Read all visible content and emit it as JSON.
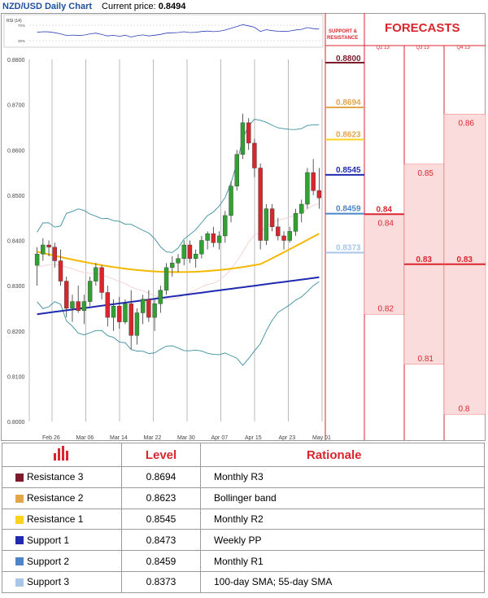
{
  "header": {
    "pair": "NZD/USD Daily Chart",
    "price_label": "Current price: ",
    "price": "0.8494"
  },
  "rsi": {
    "label": "RSI (14)",
    "ticks": [
      "70%",
      "30%"
    ]
  },
  "sr_header": "SUPPORT & RESISTANCE",
  "forecasts": {
    "title": "FORECASTS",
    "quarters": [
      "Q2 13",
      "Q3 13",
      "Q4 13"
    ],
    "values": {
      "Q2 13": {
        "high": 0.84,
        "low": 0.82
      },
      "Q3 13": {
        "high": 0.85,
        "low": 0.81
      },
      "Q4 13": {
        "high": 0.86,
        "low": 0.8
      }
    },
    "current": {
      "Q2 13": 0.84,
      "Q3 13": 0.83,
      "Q4 13": 0.83
    }
  },
  "colors": {
    "resistance3": "#7b1b2b",
    "resistance2": "#e2a64b",
    "resistance1": "#ffd21f",
    "support1": "#1f2ab0",
    "support2": "#4a86c8",
    "support3": "#a8c6e8",
    "forecast_red": "#d9262c",
    "forecast_fill": "#fbdcdc",
    "sma_fast": "#f5b800",
    "sma_slow": "#1f2ab0",
    "bollinger": "#3b8fa0",
    "bull": "#33a033",
    "bear": "#d9262c"
  },
  "chart_data": {
    "type": "candlestick",
    "title": "NZD/USD Daily Chart",
    "ylim": [
      0.8,
      0.88
    ],
    "y_ticks": [
      "0.8000",
      "0.8100",
      "0.8200",
      "0.8300",
      "0.8400",
      "0.8500",
      "0.8600",
      "0.8700",
      "0.8800"
    ],
    "x_ticks": [
      "Feb 26",
      "Mar 06",
      "Mar 14",
      "Mar 22",
      "Mar 30",
      "Apr 07",
      "Apr 15",
      "Apr 23",
      "May 01"
    ],
    "levels": [
      {
        "name": "Resistance 3",
        "value": "0.8694",
        "label": "0.8694"
      },
      {
        "name": "Resistance 2",
        "value": "0.8623",
        "label": "0.8623"
      },
      {
        "name": "Resistance 1",
        "value": "0.8545",
        "label": "0.8545"
      },
      {
        "name": "Support 2",
        "value": "0.8459",
        "label": "0.8459"
      },
      {
        "name": "Support 3",
        "value": "0.8373",
        "label": "0.8373"
      }
    ],
    "top_level": "0.8800",
    "candles": [
      [
        0.8345,
        0.8385,
        0.83,
        0.837
      ],
      [
        0.837,
        0.8405,
        0.8355,
        0.839
      ],
      [
        0.839,
        0.84,
        0.8365,
        0.8385
      ],
      [
        0.8385,
        0.8395,
        0.834,
        0.8355
      ],
      [
        0.8355,
        0.838,
        0.83,
        0.831
      ],
      [
        0.831,
        0.832,
        0.823,
        0.825
      ],
      [
        0.825,
        0.828,
        0.822,
        0.8265
      ],
      [
        0.8265,
        0.83,
        0.824,
        0.8245
      ],
      [
        0.8245,
        0.828,
        0.8215,
        0.8265
      ],
      [
        0.8265,
        0.832,
        0.8255,
        0.831
      ],
      [
        0.831,
        0.835,
        0.83,
        0.834
      ],
      [
        0.834,
        0.8345,
        0.827,
        0.8285
      ],
      [
        0.8285,
        0.83,
        0.821,
        0.823
      ],
      [
        0.823,
        0.827,
        0.82,
        0.8255
      ],
      [
        0.8255,
        0.8275,
        0.8205,
        0.822
      ],
      [
        0.822,
        0.827,
        0.8215,
        0.826
      ],
      [
        0.826,
        0.829,
        0.816,
        0.819
      ],
      [
        0.819,
        0.825,
        0.817,
        0.824
      ],
      [
        0.824,
        0.828,
        0.8215,
        0.827
      ],
      [
        0.827,
        0.829,
        0.822,
        0.823
      ],
      [
        0.823,
        0.827,
        0.82,
        0.826
      ],
      [
        0.826,
        0.83,
        0.824,
        0.829
      ],
      [
        0.829,
        0.835,
        0.828,
        0.834
      ],
      [
        0.834,
        0.8365,
        0.832,
        0.835
      ],
      [
        0.835,
        0.837,
        0.833,
        0.836
      ],
      [
        0.836,
        0.84,
        0.8345,
        0.839
      ],
      [
        0.839,
        0.84,
        0.835,
        0.836
      ],
      [
        0.836,
        0.838,
        0.834,
        0.837
      ],
      [
        0.837,
        0.841,
        0.836,
        0.84
      ],
      [
        0.84,
        0.842,
        0.838,
        0.8415
      ],
      [
        0.8415,
        0.843,
        0.8385,
        0.8395
      ],
      [
        0.8395,
        0.842,
        0.838,
        0.841
      ],
      [
        0.841,
        0.8465,
        0.8395,
        0.8455
      ],
      [
        0.8455,
        0.853,
        0.844,
        0.852
      ],
      [
        0.852,
        0.86,
        0.851,
        0.859
      ],
      [
        0.859,
        0.868,
        0.858,
        0.866
      ],
      [
        0.866,
        0.867,
        0.86,
        0.8615
      ],
      [
        0.8615,
        0.8625,
        0.854,
        0.856
      ],
      [
        0.856,
        0.857,
        0.838,
        0.84
      ],
      [
        0.84,
        0.848,
        0.839,
        0.847
      ],
      [
        0.847,
        0.848,
        0.842,
        0.843
      ],
      [
        0.843,
        0.845,
        0.84,
        0.841
      ],
      [
        0.841,
        0.842,
        0.838,
        0.84
      ],
      [
        0.84,
        0.843,
        0.8395,
        0.842
      ],
      [
        0.842,
        0.847,
        0.841,
        0.846
      ],
      [
        0.846,
        0.849,
        0.844,
        0.848
      ],
      [
        0.848,
        0.856,
        0.847,
        0.855
      ],
      [
        0.855,
        0.858,
        0.85,
        0.851
      ],
      [
        0.851,
        0.856,
        0.847,
        0.8494
      ]
    ]
  },
  "table": {
    "level_header": "Level",
    "rationale_header": "Rationale",
    "rows": [
      {
        "name": "Resistance 3",
        "value": "0.8694",
        "rationale": "Monthly R3"
      },
      {
        "name": "Resistance 2",
        "value": "0.8623",
        "rationale": "Bollinger band"
      },
      {
        "name": "Resistance 1",
        "value": "0.8545",
        "rationale": "Monthly R2"
      },
      {
        "name": "Support 1",
        "value": "0.8473",
        "rationale": "Weekly PP"
      },
      {
        "name": "Support 2",
        "value": "0.8459",
        "rationale": "Monthly R1"
      },
      {
        "name": "Support 3",
        "value": "0.8373",
        "rationale": "100-day SMA; 55-day SMA"
      }
    ]
  }
}
